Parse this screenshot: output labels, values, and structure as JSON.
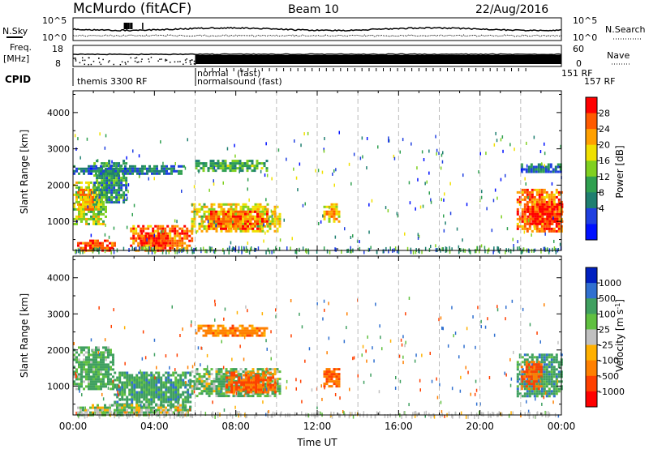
{
  "header": {
    "station": "McMurdo (fitACF)",
    "beam": "Beam 10",
    "date": "22/Aug/2016"
  },
  "top_panels": {
    "nsky_label": "N.Sky",
    "nsky_ticks": [
      "10^5",
      "10^0"
    ],
    "nsearch_label": "N.Search",
    "nsearch_ticks": [
      "10^5",
      "10^0"
    ],
    "freq_label": "Freq.",
    "freq_unit": "[MHz]",
    "freq_ticks": [
      "18",
      "8"
    ],
    "nave_label": "Nave",
    "nave_ticks": [
      "60",
      "0"
    ],
    "cpid_label": "CPID",
    "cpid_segments": [
      {
        "text": "themis 3300 RF"
      },
      {
        "text": "normal"
      },
      {
        "text": "normalsound (fast)"
      },
      {
        "text": "(fast)"
      },
      {
        "text": "151 RF"
      },
      {
        "text": "157 RF"
      }
    ]
  },
  "x_axis": {
    "label": "Time UT",
    "ticks": [
      "00:00",
      "04:00",
      "08:00",
      "12:00",
      "16:00",
      "20:00",
      "00:00"
    ]
  },
  "power_colorbar": {
    "label": "Power [dB]",
    "ticks": [
      "28",
      "24",
      "20",
      "16",
      "12",
      "8",
      "4"
    ],
    "colors": [
      "#ff0000",
      "#ff5a00",
      "#ffa000",
      "#f0e000",
      "#80d020",
      "#30a050",
      "#1f7f70",
      "#2040e0",
      "#0010ff"
    ]
  },
  "velocity_colorbar": {
    "label": "Velocity [m s",
    "label_sup": "-1",
    "label_end": "]",
    "ticks": [
      "1000",
      "500",
      "100",
      "25",
      "-25",
      "-100",
      "-500",
      "-1000"
    ],
    "colors": [
      "#0020c0",
      "#3070d0",
      "#40a060",
      "#60c040",
      "#c0c0c0",
      "#ffb000",
      "#ff8000",
      "#ff4000",
      "#ff0000"
    ]
  },
  "chart_data": [
    {
      "type": "heatmap",
      "name": "power",
      "xlabel": "Time UT",
      "ylabel": "Slant Range [km]",
      "x_ticks": [
        "00:00",
        "04:00",
        "08:00",
        "12:00",
        "16:00",
        "20:00",
        "00:00"
      ],
      "y_ticks": [
        1000,
        2000,
        3000,
        4000
      ],
      "ylim": [
        200,
        4600
      ],
      "xlim_hours": [
        0,
        24
      ],
      "colorbar": {
        "label": "Power [dB]",
        "range": [
          0,
          30
        ]
      },
      "echo_regions": [
        {
          "t0": 0.0,
          "t1": 1.6,
          "r0": 900,
          "r1": 2100,
          "value": 16
        },
        {
          "t0": 0.2,
          "t1": 1.0,
          "r0": 1300,
          "r1": 1900,
          "value": 22
        },
        {
          "t0": 1.0,
          "t1": 2.6,
          "r0": 1500,
          "r1": 2700,
          "value": 10
        },
        {
          "t0": 0.2,
          "t1": 2.0,
          "r0": 200,
          "r1": 500,
          "value": 26
        },
        {
          "t0": 2.8,
          "t1": 5.8,
          "r0": 200,
          "r1": 900,
          "value": 24
        },
        {
          "t0": 3.2,
          "t1": 4.6,
          "r0": 300,
          "r1": 700,
          "value": 28
        },
        {
          "t0": 0.0,
          "t1": 5.5,
          "r0": 2300,
          "r1": 2550,
          "value": 8
        },
        {
          "t0": 5.8,
          "t1": 10.2,
          "r0": 700,
          "r1": 1500,
          "value": 18
        },
        {
          "t0": 6.5,
          "t1": 9.5,
          "r0": 800,
          "r1": 1300,
          "value": 24
        },
        {
          "t0": 6.0,
          "t1": 9.5,
          "r0": 2400,
          "r1": 2700,
          "value": 12
        },
        {
          "t0": 12.3,
          "t1": 13.1,
          "r0": 1000,
          "r1": 1500,
          "value": 20
        },
        {
          "t0": 21.8,
          "t1": 24.0,
          "r0": 700,
          "r1": 1900,
          "value": 24
        },
        {
          "t0": 22.3,
          "t1": 24.0,
          "r0": 900,
          "r1": 1500,
          "value": 28
        },
        {
          "t0": 22.0,
          "t1": 24.0,
          "r0": 2350,
          "r1": 2600,
          "value": 8
        }
      ]
    },
    {
      "type": "heatmap",
      "name": "velocity",
      "xlabel": "Time UT",
      "ylabel": "Slant Range [km]",
      "x_ticks": [
        "00:00",
        "04:00",
        "08:00",
        "12:00",
        "16:00",
        "20:00",
        "00:00"
      ],
      "y_ticks": [
        1000,
        2000,
        3000,
        4000
      ],
      "ylim": [
        200,
        4600
      ],
      "xlim_hours": [
        0,
        24
      ],
      "colorbar": {
        "label": "Velocity [m s-1]",
        "range": [
          -1000,
          1000
        ]
      },
      "echo_regions": [
        {
          "t0": 0.0,
          "t1": 2.0,
          "r0": 900,
          "r1": 2100,
          "value": 150
        },
        {
          "t0": 2.0,
          "t1": 5.8,
          "r0": 400,
          "r1": 1400,
          "value": 200
        },
        {
          "t0": 0.2,
          "t1": 5.8,
          "r0": 200,
          "r1": 500,
          "value": 30
        },
        {
          "t0": 5.8,
          "t1": 10.2,
          "r0": 700,
          "r1": 1500,
          "value": 100
        },
        {
          "t0": 7.5,
          "t1": 10.0,
          "r0": 800,
          "r1": 1400,
          "value": -300
        },
        {
          "t0": 6.0,
          "t1": 9.5,
          "r0": 2400,
          "r1": 2700,
          "value": -200
        },
        {
          "t0": 12.3,
          "t1": 13.1,
          "r0": 1000,
          "r1": 1500,
          "value": -300
        },
        {
          "t0": 21.8,
          "t1": 24.0,
          "r0": 700,
          "r1": 1900,
          "value": 200
        },
        {
          "t0": 22.0,
          "t1": 23.0,
          "r0": 900,
          "r1": 1700,
          "value": -300
        }
      ]
    }
  ]
}
